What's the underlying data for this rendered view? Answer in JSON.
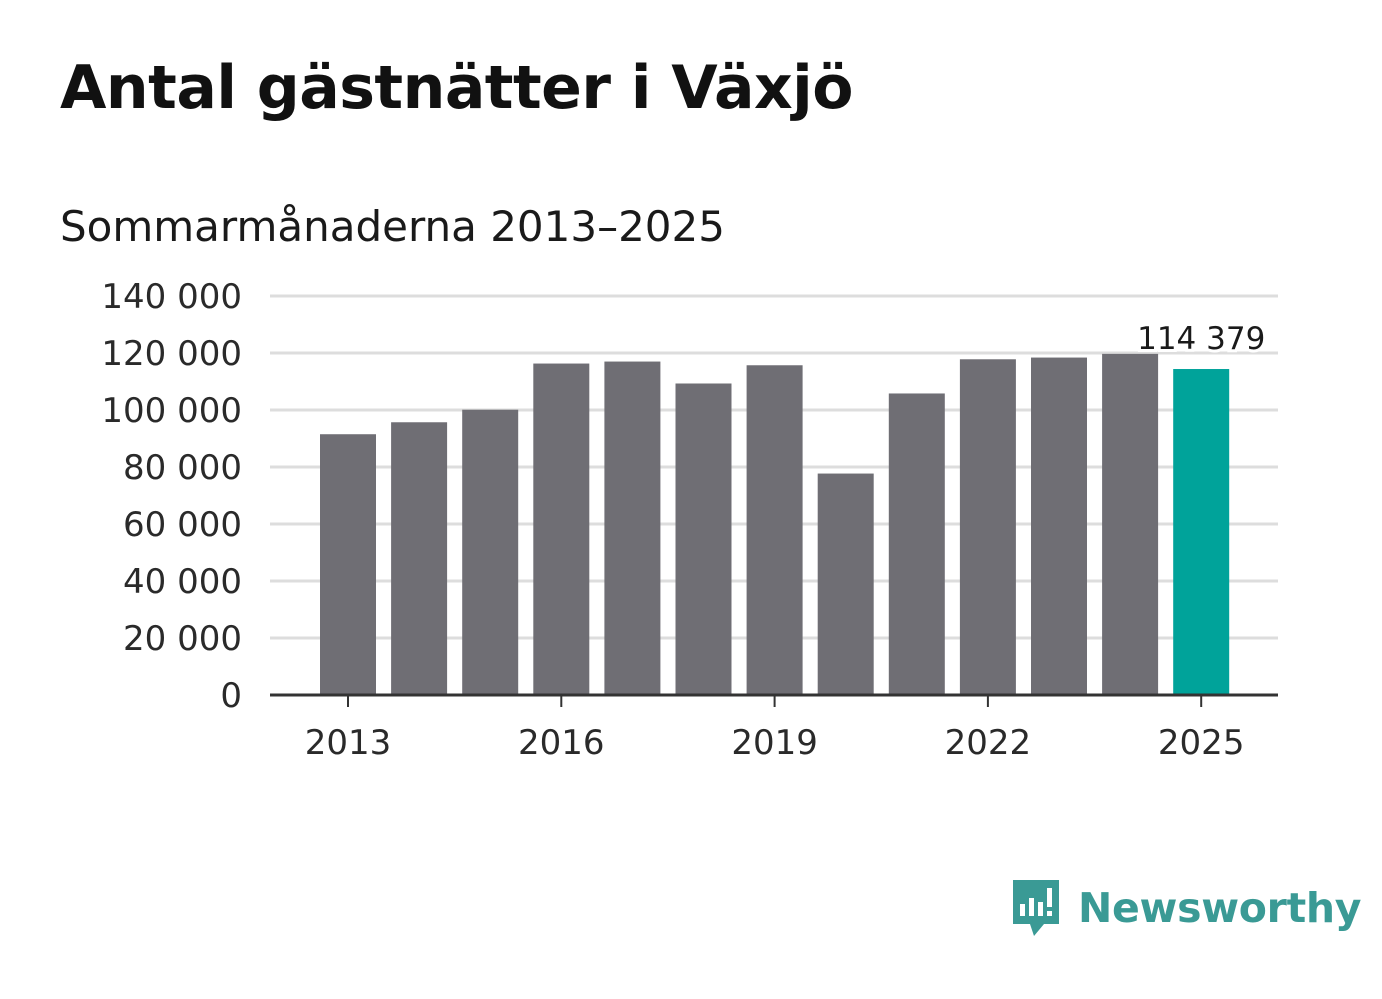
{
  "title": "Antal gästnätter i Växjö",
  "subtitle": "Sommarmånaderna 2013–2025",
  "brand": {
    "name": "Newsworthy",
    "color": "#3a9a95",
    "icon": "bar-chart-speech-bubble-icon"
  },
  "colors": {
    "bar": "#6f6e74",
    "highlight": "#00a39a",
    "grid": "#dddddd",
    "axis": "#333333"
  },
  "chart_data": {
    "type": "bar",
    "categories": [
      "2013",
      "2014",
      "2015",
      "2016",
      "2017",
      "2018",
      "2019",
      "2020",
      "2021",
      "2022",
      "2023",
      "2024",
      "2025"
    ],
    "values": [
      91500,
      95700,
      100100,
      116300,
      117000,
      109300,
      115700,
      77700,
      105800,
      117800,
      118400,
      119700,
      114379
    ],
    "highlight_index": 12,
    "x_tick_labels": [
      "2013",
      "2016",
      "2019",
      "2022",
      "2025"
    ],
    "y_ticks": [
      0,
      20000,
      40000,
      60000,
      80000,
      100000,
      120000,
      140000
    ],
    "y_tick_labels": [
      "0",
      "20 000",
      "40 000",
      "60 000",
      "80 000",
      "100 000",
      "120 000",
      "140 000"
    ],
    "ylim": [
      0,
      140000
    ],
    "annotation": "114 379",
    "grid": true,
    "legend": "none"
  }
}
